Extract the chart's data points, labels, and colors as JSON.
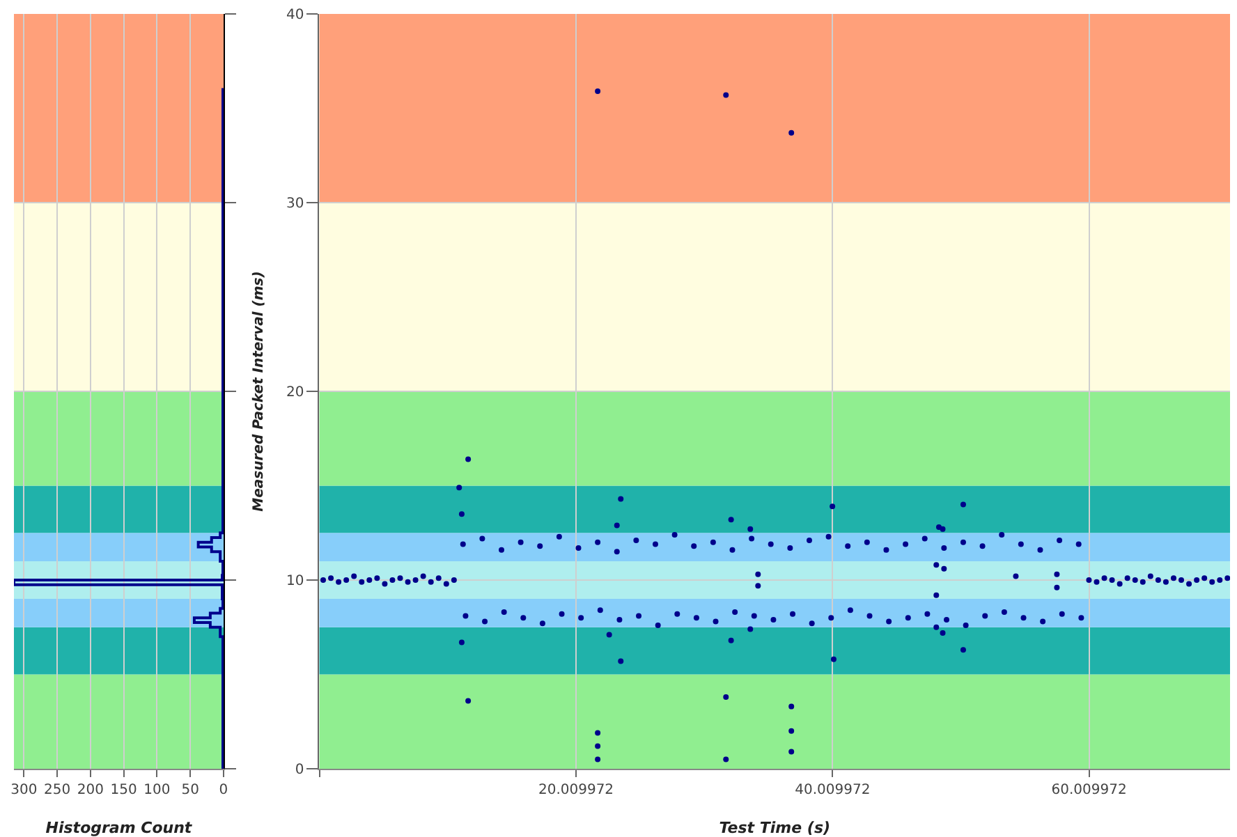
{
  "chart_data": [
    {
      "type": "histogram",
      "orientation": "horizontal",
      "xlabel": "Histogram Count",
      "color": "#00008b",
      "bins": [
        0,
        5,
        7,
        7.5,
        7.75,
        8,
        8.25,
        8.5,
        9,
        9.75,
        10,
        10.25,
        11,
        11.5,
        11.75,
        12,
        12.25,
        12.5,
        13,
        15,
        36
      ],
      "values": [
        1,
        1,
        5,
        20,
        44,
        20,
        5,
        1,
        2,
        315,
        2,
        1,
        5,
        18,
        38,
        18,
        5,
        1,
        1,
        1
      ],
      "xlim": [
        315,
        0
      ],
      "xticks": [
        300,
        250,
        200,
        150,
        100,
        50,
        0
      ],
      "ylim": [
        0,
        40
      ],
      "yticks": [
        0,
        10,
        20,
        30,
        40
      ],
      "tick_labels": "x",
      "grid": true,
      "bands": [
        {
          "axis": "y",
          "from": 0,
          "to": 5,
          "color": "#90ee90"
        },
        {
          "axis": "y",
          "from": 5,
          "to": 7.5,
          "color": "#20b2aa"
        },
        {
          "axis": "y",
          "from": 7.5,
          "to": 9,
          "color": "#87cefa"
        },
        {
          "axis": "y",
          "from": 9,
          "to": 11,
          "color": "#afeeee"
        },
        {
          "axis": "y",
          "from": 11,
          "to": 12.5,
          "color": "#87cefa"
        },
        {
          "axis": "y",
          "from": 12.5,
          "to": 15,
          "color": "#20b2aa"
        },
        {
          "axis": "y",
          "from": 15,
          "to": 20,
          "color": "#90ee90"
        },
        {
          "axis": "y",
          "from": 20,
          "to": 30,
          "color": "#fffde0"
        },
        {
          "axis": "y",
          "from": 30,
          "to": 40,
          "color": "#ffa07a"
        }
      ]
    },
    {
      "type": "scatter",
      "xlabel": "Test Time (s)",
      "ylabel": "Measured Packet Interval (ms)",
      "color": "#00008b",
      "marker": "circle",
      "grid": true,
      "xlim": [
        0,
        71
      ],
      "xticks": [
        {
          "value": 0.009972,
          "label": null
        },
        20.009972,
        40.009972,
        60.009972
      ],
      "ylim": [
        0,
        40
      ],
      "yticks": [
        0,
        10,
        20,
        30,
        40
      ],
      "x": [
        0.3,
        0.9,
        1.5,
        2.1,
        2.7,
        3.3,
        3.9,
        4.5,
        5.1,
        5.7,
        6.3,
        6.9,
        7.5,
        8.1,
        8.7,
        9.3,
        9.9,
        10.5,
        11.2,
        12.7,
        14.2,
        15.7,
        17.2,
        18.7,
        20.2,
        21.7,
        23.2,
        24.7,
        26.2,
        27.7,
        29.2,
        30.7,
        32.2,
        33.7,
        35.2,
        36.7,
        38.2,
        39.7,
        41.2,
        42.7,
        44.2,
        45.7,
        47.2,
        48.7,
        50.2,
        51.7,
        53.2,
        54.7,
        56.2,
        57.7,
        59.2,
        11.4,
        12.9,
        14.4,
        15.9,
        17.4,
        18.9,
        20.4,
        21.9,
        23.4,
        24.9,
        26.4,
        27.9,
        29.4,
        30.9,
        32.4,
        33.9,
        35.4,
        36.9,
        38.4,
        39.9,
        41.4,
        42.9,
        44.4,
        45.9,
        47.4,
        48.9,
        50.4,
        51.9,
        53.4,
        54.9,
        56.4,
        57.9,
        59.4,
        60.0,
        60.6,
        61.2,
        61.8,
        62.4,
        63.0,
        63.6,
        64.2,
        64.8,
        65.4,
        66.0,
        66.6,
        67.2,
        67.8,
        68.4,
        69.0,
        69.6,
        70.2,
        70.8,
        21.7,
        31.7,
        36.8,
        10.9,
        11.6,
        11.1,
        23.5,
        23.2,
        32.1,
        33.6,
        40.0,
        50.2,
        48.3,
        48.6,
        34.2,
        34.2,
        48.1,
        48.7,
        54.3,
        57.5,
        57.5,
        48.1,
        11.1,
        22.6,
        23.5,
        32.1,
        33.6,
        48.1,
        48.6,
        50.2,
        40.1,
        11.6,
        31.7,
        21.7,
        21.7,
        21.7,
        31.7,
        36.8,
        36.8,
        36.8
      ],
      "values": [
        10.0,
        10.1,
        9.9,
        10.0,
        10.2,
        9.9,
        10.0,
        10.1,
        9.8,
        10.0,
        10.1,
        9.9,
        10.0,
        10.2,
        9.9,
        10.1,
        9.8,
        10.0,
        11.9,
        12.2,
        11.6,
        12.0,
        11.8,
        12.3,
        11.7,
        12.0,
        11.5,
        12.1,
        11.9,
        12.4,
        11.8,
        12.0,
        11.6,
        12.2,
        11.9,
        11.7,
        12.1,
        12.3,
        11.8,
        12.0,
        11.6,
        11.9,
        12.2,
        11.7,
        12.0,
        11.8,
        12.4,
        11.9,
        11.6,
        12.1,
        11.9,
        8.1,
        7.8,
        8.3,
        8.0,
        7.7,
        8.2,
        8.0,
        8.4,
        7.9,
        8.1,
        7.6,
        8.2,
        8.0,
        7.8,
        8.3,
        8.1,
        7.9,
        8.2,
        7.7,
        8.0,
        8.4,
        8.1,
        7.8,
        8.0,
        8.2,
        7.9,
        7.6,
        8.1,
        8.3,
        8.0,
        7.8,
        8.2,
        8.0,
        10.0,
        9.9,
        10.1,
        10.0,
        9.8,
        10.1,
        10.0,
        9.9,
        10.2,
        10.0,
        9.9,
        10.1,
        10.0,
        9.8,
        10.0,
        10.1,
        9.9,
        10.0,
        10.1,
        35.9,
        35.7,
        33.7,
        14.9,
        16.4,
        13.5,
        14.3,
        12.9,
        13.2,
        12.7,
        13.9,
        14.0,
        12.8,
        12.7,
        10.3,
        9.7,
        10.8,
        10.6,
        10.2,
        10.3,
        9.6,
        9.2,
        6.7,
        7.1,
        5.7,
        6.8,
        7.4,
        7.5,
        7.2,
        6.3,
        5.8,
        3.6,
        3.8,
        1.9,
        1.2,
        0.5,
        0.5,
        3.3,
        2.0,
        0.9
      ],
      "bands": [
        {
          "axis": "y",
          "from": 0,
          "to": 5,
          "color": "#90ee90"
        },
        {
          "axis": "y",
          "from": 5,
          "to": 7.5,
          "color": "#20b2aa"
        },
        {
          "axis": "y",
          "from": 7.5,
          "to": 9,
          "color": "#87cefa"
        },
        {
          "axis": "y",
          "from": 9,
          "to": 11,
          "color": "#afeeee"
        },
        {
          "axis": "y",
          "from": 11,
          "to": 12.5,
          "color": "#87cefa"
        },
        {
          "axis": "y",
          "from": 12.5,
          "to": 15,
          "color": "#20b2aa"
        },
        {
          "axis": "y",
          "from": 15,
          "to": 20,
          "color": "#90ee90"
        },
        {
          "axis": "y",
          "from": 20,
          "to": 30,
          "color": "#fffde0"
        },
        {
          "axis": "y",
          "from": 30,
          "to": 40,
          "color": "#ffa07a"
        }
      ]
    }
  ]
}
